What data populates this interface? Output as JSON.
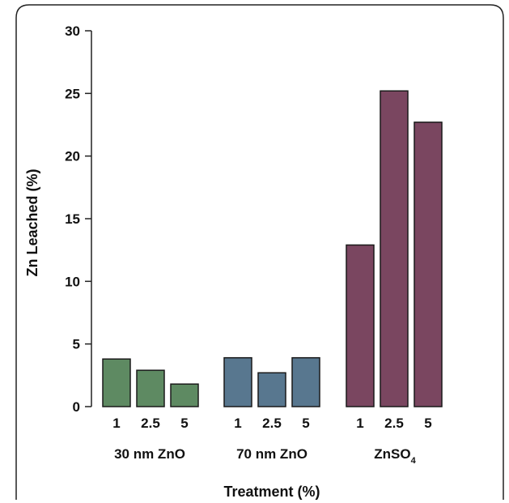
{
  "chart_data": {
    "type": "bar",
    "ylabel": "Zn Leached (%)",
    "xlabel": "Treatment (%)",
    "ylim": [
      0,
      30
    ],
    "yticks": [
      0,
      5,
      10,
      15,
      20,
      25,
      30
    ],
    "grid": false,
    "legend": "none",
    "groups": [
      {
        "name": "30 nm ZnO",
        "color": "#5e8a62",
        "categories": [
          "1",
          "2.5",
          "5"
        ],
        "values": [
          3.8,
          2.9,
          1.8
        ]
      },
      {
        "name": "70 nm ZnO",
        "color": "#58778f",
        "categories": [
          "1",
          "2.5",
          "5"
        ],
        "values": [
          3.9,
          2.7,
          3.9
        ]
      },
      {
        "name": "ZnSO4",
        "color": "#7a4660",
        "categories": [
          "1",
          "2.5",
          "5"
        ],
        "values": [
          12.9,
          25.2,
          22.7
        ]
      }
    ]
  }
}
